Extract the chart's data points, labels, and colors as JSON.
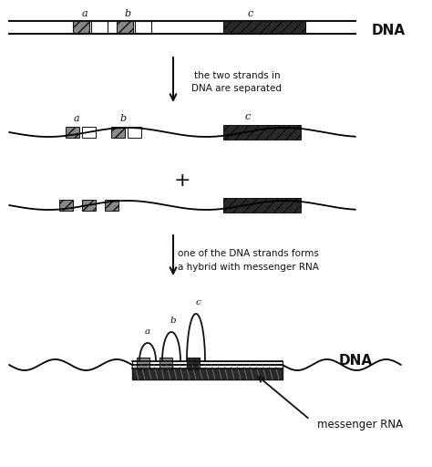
{
  "bg_color": "#ffffff",
  "dna_label": "DNA",
  "arrow1_text_line1": "the two strands in",
  "arrow1_text_line2": "DNA are separated",
  "arrow2_text_line1": "one of the DNA strands forms",
  "arrow2_text_line2": "a hybrid with messenger RNA",
  "plus_text": "+",
  "dna_bottom_label": "DNA",
  "mrna_label": "messenger RNA",
  "exon_hatch_color": "#888888",
  "exon_white_color": "#ffffff",
  "line_color": "#111111",
  "dark_rect_color": "#2a2a2a",
  "strand_color": "#111111"
}
